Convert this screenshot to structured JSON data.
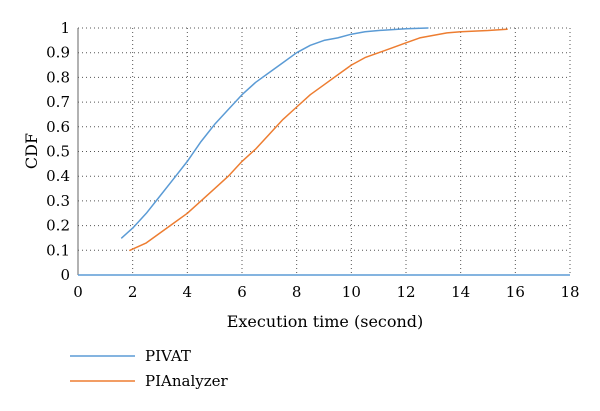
{
  "chart_data": {
    "type": "line",
    "title": "",
    "xlabel": "Execution time (second)",
    "ylabel": "CDF",
    "xlim": [
      0,
      18
    ],
    "ylim": [
      0,
      1
    ],
    "x_ticks": [
      0,
      2,
      4,
      6,
      8,
      10,
      12,
      14,
      16,
      18
    ],
    "y_ticks": [
      0,
      0.1,
      0.2,
      0.3,
      0.4,
      0.5,
      0.6,
      0.7,
      0.8,
      0.9,
      1
    ],
    "x_tick_labels": [
      "0",
      "2",
      "4",
      "6",
      "8",
      "10",
      "12",
      "14",
      "16",
      "18"
    ],
    "y_tick_labels": [
      "0",
      "0.1",
      "0.2",
      "0.3",
      "0.4",
      "0.5",
      "0.6",
      "0.7",
      "0.8",
      "0.9",
      "1"
    ],
    "grid": "dotted",
    "legend_position": "bottom-left",
    "series": [
      {
        "name": "PIVAT",
        "color": "#5b9bd5",
        "points": [
          [
            1.6,
            0.15
          ],
          [
            2.0,
            0.19
          ],
          [
            2.5,
            0.25
          ],
          [
            3.0,
            0.32
          ],
          [
            3.5,
            0.39
          ],
          [
            4.0,
            0.46
          ],
          [
            4.5,
            0.54
          ],
          [
            5.0,
            0.61
          ],
          [
            5.5,
            0.67
          ],
          [
            6.0,
            0.73
          ],
          [
            6.5,
            0.78
          ],
          [
            7.0,
            0.82
          ],
          [
            7.5,
            0.86
          ],
          [
            8.0,
            0.9
          ],
          [
            8.5,
            0.93
          ],
          [
            9.0,
            0.95
          ],
          [
            9.5,
            0.96
          ],
          [
            10.0,
            0.975
          ],
          [
            10.5,
            0.985
          ],
          [
            11.0,
            0.99
          ],
          [
            12.0,
            0.997
          ],
          [
            12.8,
            1.0
          ]
        ]
      },
      {
        "name": "PIAnalyzer",
        "color": "#ed7d31",
        "points": [
          [
            1.9,
            0.1
          ],
          [
            2.5,
            0.13
          ],
          [
            3.0,
            0.17
          ],
          [
            3.5,
            0.21
          ],
          [
            4.0,
            0.25
          ],
          [
            4.5,
            0.3
          ],
          [
            5.0,
            0.35
          ],
          [
            5.5,
            0.4
          ],
          [
            6.0,
            0.46
          ],
          [
            6.5,
            0.51
          ],
          [
            7.0,
            0.57
          ],
          [
            7.5,
            0.63
          ],
          [
            8.0,
            0.68
          ],
          [
            8.5,
            0.73
          ],
          [
            9.0,
            0.77
          ],
          [
            9.5,
            0.81
          ],
          [
            10.0,
            0.85
          ],
          [
            10.5,
            0.88
          ],
          [
            11.0,
            0.9
          ],
          [
            11.5,
            0.92
          ],
          [
            12.0,
            0.94
          ],
          [
            12.5,
            0.96
          ],
          [
            13.0,
            0.97
          ],
          [
            13.5,
            0.98
          ],
          [
            14.0,
            0.985
          ],
          [
            15.0,
            0.99
          ],
          [
            15.7,
            0.995
          ]
        ]
      }
    ]
  }
}
